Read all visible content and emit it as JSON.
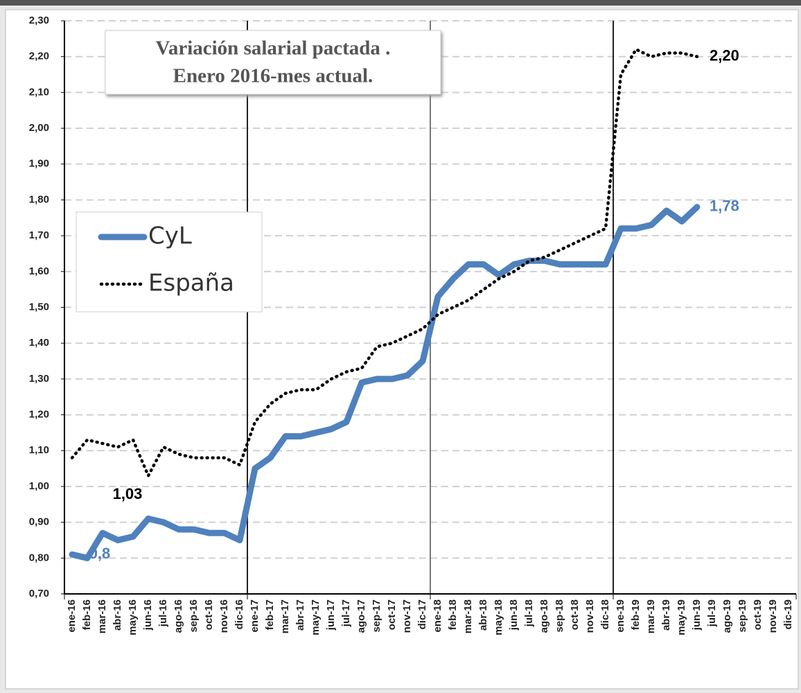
{
  "chart_data": {
    "type": "line",
    "title": [
      "Variación salarial  pactada .",
      "Enero 2016-mes actual."
    ],
    "categories": [
      "ene-16",
      "feb-16",
      "mar-16",
      "abr-16",
      "may-16",
      "jun-16",
      "jul-16",
      "ago-16",
      "sep-16",
      "oct-16",
      "nov-16",
      "dic-16",
      "ene-17",
      "feb-17",
      "mar-17",
      "abr-17",
      "may-17",
      "jun-17",
      "jul-17",
      "ago-17",
      "sep-17",
      "oct-17",
      "nov-17",
      "dic-17",
      "ene-18",
      "feb-18",
      "mar-18",
      "abr-18",
      "may-18",
      "jun-18",
      "jul-18",
      "ago-18",
      "sep-18",
      "oct-18",
      "nov-18",
      "dic-18",
      "ene-19",
      "feb-19",
      "mar-19",
      "abr-19",
      "may-19",
      "jun-19",
      "jul-19",
      "ago-19",
      "sep-19",
      "oct-19",
      "nov-19",
      "dic-19"
    ],
    "series": [
      {
        "name": "CyL",
        "color": "#4f81bd",
        "style": "solid",
        "values": [
          0.81,
          0.8,
          0.87,
          0.85,
          0.86,
          0.91,
          0.9,
          0.88,
          0.88,
          0.87,
          0.87,
          0.85,
          1.05,
          1.08,
          1.14,
          1.14,
          1.15,
          1.16,
          1.18,
          1.29,
          1.3,
          1.3,
          1.31,
          1.35,
          1.53,
          1.58,
          1.62,
          1.62,
          1.59,
          1.62,
          1.63,
          1.63,
          1.62,
          1.62,
          1.62,
          1.62,
          1.72,
          1.72,
          1.73,
          1.77,
          1.74,
          1.78,
          null,
          null,
          null,
          null,
          null,
          null
        ],
        "value_labels": [
          "0,8",
          null,
          null,
          null,
          null,
          null,
          null,
          null,
          null,
          null,
          null,
          null,
          null,
          null,
          null,
          null,
          null,
          null,
          null,
          null,
          null,
          null,
          null,
          null,
          null,
          null,
          null,
          null,
          null,
          null,
          null,
          null,
          null,
          null,
          null,
          null,
          null,
          null,
          null,
          null,
          null,
          "1,78",
          null,
          null,
          null,
          null,
          null,
          null
        ]
      },
      {
        "name": "España",
        "color": "#000000",
        "style": "dotted",
        "values": [
          1.08,
          1.13,
          1.12,
          1.11,
          1.13,
          1.03,
          1.11,
          1.09,
          1.08,
          1.08,
          1.08,
          1.06,
          1.18,
          1.23,
          1.26,
          1.27,
          1.27,
          1.3,
          1.32,
          1.33,
          1.39,
          1.4,
          1.42,
          1.44,
          1.48,
          1.5,
          1.52,
          1.55,
          1.58,
          1.6,
          1.63,
          1.64,
          1.66,
          1.68,
          1.7,
          1.72,
          2.15,
          2.22,
          2.2,
          2.21,
          2.21,
          2.2,
          null,
          null,
          null,
          null,
          null,
          null
        ],
        "value_labels": [
          null,
          null,
          null,
          null,
          null,
          "1,03",
          null,
          null,
          null,
          null,
          null,
          null,
          null,
          null,
          null,
          null,
          null,
          null,
          null,
          null,
          null,
          null,
          null,
          null,
          null,
          null,
          null,
          null,
          null,
          null,
          null,
          null,
          null,
          null,
          null,
          null,
          null,
          null,
          null,
          null,
          null,
          "2,20",
          null,
          null,
          null,
          null,
          null,
          null
        ]
      }
    ],
    "ylim": [
      0.7,
      2.3
    ],
    "yticks": [
      {
        "value": 0.7,
        "label": "0,70"
      },
      {
        "value": 0.8,
        "label": "0,80"
      },
      {
        "value": 0.9,
        "label": "0,90"
      },
      {
        "value": 1.0,
        "label": "1,00"
      },
      {
        "value": 1.1,
        "label": "1,10"
      },
      {
        "value": 1.2,
        "label": "1,20"
      },
      {
        "value": 1.3,
        "label": "1,30"
      },
      {
        "value": 1.4,
        "label": "1,40"
      },
      {
        "value": 1.5,
        "label": "1,50"
      },
      {
        "value": 1.6,
        "label": "1,60"
      },
      {
        "value": 1.7,
        "label": "1,70"
      },
      {
        "value": 1.8,
        "label": "1,80"
      },
      {
        "value": 1.9,
        "label": "1,90"
      },
      {
        "value": 2.0,
        "label": "2,00"
      },
      {
        "value": 2.1,
        "label": "2,10"
      },
      {
        "value": 2.2,
        "label": "2,20"
      },
      {
        "value": 2.3,
        "label": "2,30"
      }
    ],
    "grid": true,
    "legend": "left"
  }
}
